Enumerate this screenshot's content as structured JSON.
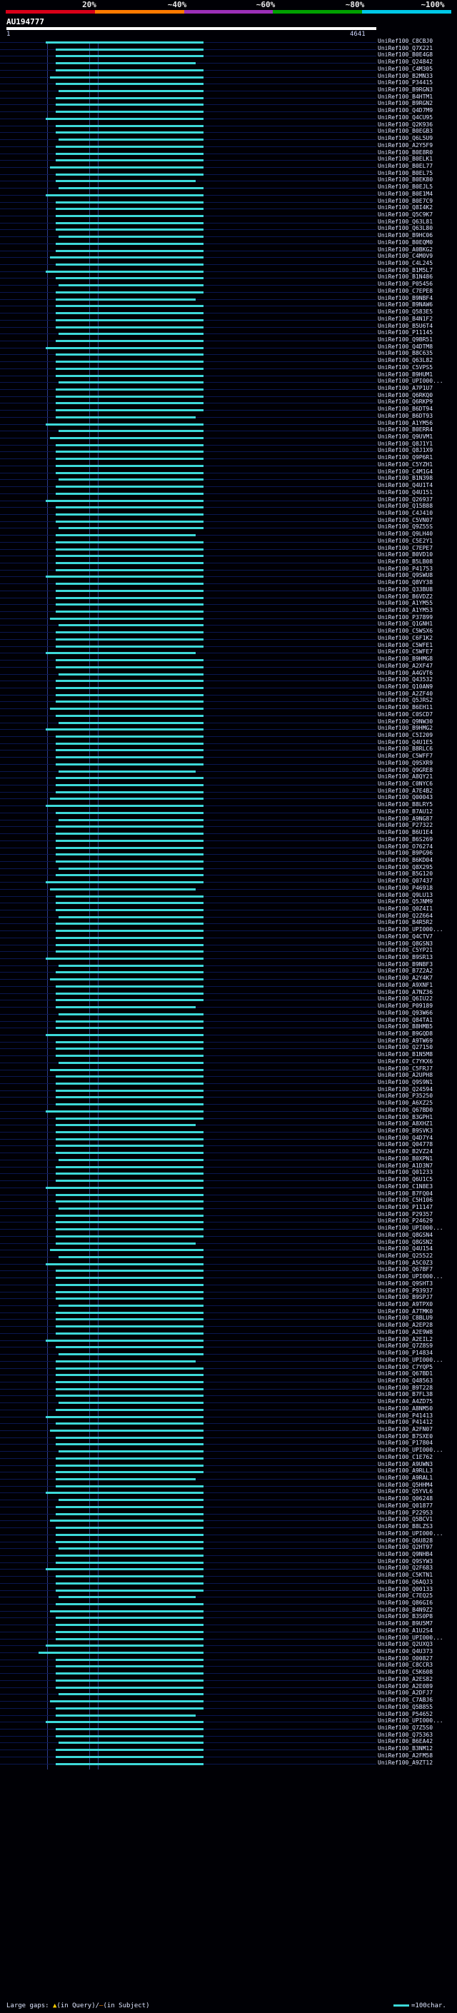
{
  "header": {
    "percent_labels": [
      "20%",
      "~40%",
      "~60%",
      "~80%",
      "~100%"
    ],
    "colors": [
      "#d80018",
      "#ff7a00",
      "#9b30b8",
      "#00a000",
      "#00c8e8"
    ],
    "hit_color": "#3dd9d9",
    "query_name": "AU194777",
    "axis_start": "1",
    "axis_end": "4641"
  },
  "legend": {
    "large_gaps_label": "Large gaps:",
    "in_query": "(in Query)",
    "separator": "/",
    "in_subject": "(in Subject)",
    "scale_label": "=100char."
  },
  "rows": [
    "UniRef100_C8CBJ0",
    "UniRef100_Q7X221",
    "UniRef100_B0E4G8",
    "UniRef100_Q24842",
    "UniRef100_C4M305",
    "UniRef100_B2MN33",
    "UniRef100_P34415",
    "UniRef100_B9RGN3",
    "UniRef100_B4HTM1",
    "UniRef100_B9RGN2",
    "UniRef100_Q4D7M9",
    "UniRef100_Q4CU95",
    "UniRef100_Q2K936",
    "UniRef100_B0EGB3",
    "UniRef100_Q6L5U9",
    "UniRef100_A2Y5F9",
    "UniRef100_B0E8R0",
    "UniRef100_B0ELK1",
    "UniRef100_B0EL77",
    "UniRef100_B0EL75",
    "UniRef100_B0EK80",
    "UniRef100_B0EJL5",
    "UniRef100_B0E1M4",
    "UniRef100_B0E7C9",
    "UniRef100_Q8I4K2",
    "UniRef100_Q5C9K7",
    "UniRef100_Q63L81",
    "UniRef100_Q63L80",
    "UniRef100_B9HC06",
    "UniRef100_B0EQM0",
    "UniRef100_A0BKG2",
    "UniRef100_C4M0V9",
    "UniRef100_C4L245",
    "UniRef100_B1M5L7",
    "UniRef100_B1N486",
    "UniRef100_P05456",
    "UniRef100_C7EPE8",
    "UniRef100_B9NBF4",
    "UniRef100_B9NAW6",
    "UniRef100_Q583E5",
    "UniRef100_B4N1F2",
    "UniRef100_B5U6T4",
    "UniRef100_P11145",
    "UniRef100_Q9BR51",
    "UniRef100_Q4DTM8",
    "UniRef100_B8C635",
    "UniRef100_Q63L82",
    "UniRef100_C5VPS5",
    "UniRef100_B9HUM1",
    "UniRef100_UPI000...",
    "UniRef100_A7P1U7",
    "UniRef100_Q6RKQ0",
    "UniRef100_Q6RKP9",
    "UniRef100_B6DT94",
    "UniRef100_B6DT93",
    "UniRef100_A1YM56",
    "UniRef100_B0ERR4",
    "UniRef100_Q9UVM1",
    "UniRef100_Q8J1Y1",
    "UniRef100_Q8J1X9",
    "UniRef100_Q9P6R1",
    "UniRef100_C5YZH1",
    "UniRef100_C4M1G4",
    "UniRef100_B1N398",
    "UniRef100_Q4U1T4",
    "UniRef100_Q4U151",
    "UniRef100_Q26937",
    "UniRef100_Q15B88",
    "UniRef100_C4J410",
    "UniRef100_C5VN07",
    "UniRef100_Q9Z55S",
    "UniRef100_Q9LH40",
    "UniRef100_C5E2Y1",
    "UniRef100_C7EPE7",
    "UniRef100_B0VD10",
    "UniRef100_B5LB08",
    "UniRef100_P41753",
    "UniRef100_Q9SWU8",
    "UniRef100_Q8VY38",
    "UniRef100_Q33BU8",
    "UniRef100_B6VDZ2",
    "UniRef100_A1YM55",
    "UniRef100_A1YM53",
    "UniRef100_P37899",
    "UniRef100_Q1GNH1",
    "UniRef100_C5WSX6",
    "UniRef100_C6F1K2",
    "UniRef100_C5WFE1",
    "UniRef100_C5WFE7",
    "UniRef100_B9HMG8",
    "UniRef100_A2XF47",
    "UniRef100_A4GVT6",
    "UniRef100_Q43532",
    "UniRef100_Q10AN9",
    "UniRef100_A2ZF40",
    "UniRef100_Q5JRS2",
    "UniRef100_B6EH11",
    "UniRef100_C0SCD7",
    "UniRef100_Q9NW30",
    "UniRef100_B9HMG2",
    "UniRef100_C5I209",
    "UniRef100_Q4U1E5",
    "UniRef100_B8RLC6",
    "UniRef100_C5WFF7",
    "UniRef100_Q9SXR9",
    "UniRef100_Q9GRE8",
    "UniRef100_A8QY21",
    "UniRef100_C0NYC6",
    "UniRef100_A7E4B2",
    "UniRef100_Q00043",
    "UniRef100_B8LRY5",
    "UniRef100_B7AU12",
    "UniRef100_A9NG87",
    "UniRef100_P27322",
    "UniRef100_B6U1E4",
    "UniRef100_B6S269",
    "UniRef100_O76274",
    "UniRef100_B9PG96",
    "UniRef100_B6KD04",
    "UniRef100_Q8X295",
    "UniRef100_B5G120",
    "UniRef100_Q07437",
    "UniRef100_P46918",
    "UniRef100_Q9LU13",
    "UniRef100_Q5JNM9",
    "UniRef100_Q0Z4I1",
    "UniRef100_Q2Z664",
    "UniRef100_B4R5R2",
    "UniRef100_UPI000...",
    "UniRef100_Q4CTV7",
    "UniRef100_Q8GSN3",
    "UniRef100_C5YP21",
    "UniRef100_B9SR13",
    "UniRef100_B9NBF3",
    "UniRef100_B7Z2A2",
    "UniRef100_A2Y4K7",
    "UniRef100_A9XNF1",
    "UniRef100_A7NZ36",
    "UniRef100_Q6IU22",
    "UniRef100_P09189",
    "UniRef100_Q93W66",
    "UniRef100_Q84TA1",
    "UniRef100_B8HMB5",
    "UniRef100_B9GQD8",
    "UniRef100_A9TW69",
    "UniRef100_Q27150",
    "UniRef100_B1N5M8",
    "UniRef100_C7YKX6",
    "UniRef100_C5FRJ7",
    "UniRef100_A2UPH8",
    "UniRef100_Q9S9N1",
    "UniRef100_Q24594",
    "UniRef100_P35250",
    "UniRef100_A6XZ25",
    "UniRef100_Q67BD0",
    "UniRef100_B3GPH1",
    "UniRef100_A8XHZ1",
    "UniRef100_B9SVK3",
    "UniRef100_Q4D7Y4",
    "UniRef100_Q04778",
    "UniRef100_B2VZ24",
    "UniRef100_B0XPN1",
    "UniRef100_A1D3N7",
    "UniRef100_Q01233",
    "UniRef100_Q6U1C5",
    "UniRef100_C1N8E3",
    "UniRef100_B7FQ04",
    "UniRef100_C5H106",
    "UniRef100_P11147",
    "UniRef100_P29357",
    "UniRef100_P24629",
    "UniRef100_UPI000...",
    "UniRef100_Q8GSN4",
    "UniRef100_Q8GSN2",
    "UniRef100_Q4U154",
    "UniRef100_Q25522",
    "UniRef100_A5C0Z3",
    "UniRef100_Q67BF7",
    "UniRef100_UPI000...",
    "UniRef100_Q9SHT3",
    "UniRef100_P93937",
    "UniRef100_B9SPJ7",
    "UniRef100_A9TPX0",
    "UniRef100_A7TMK0",
    "UniRef100_C8BLU9",
    "UniRef100_A2EP28",
    "UniRef100_A2E9W8",
    "UniRef100_A2EIL2",
    "UniRef100_Q7Z8S9",
    "UniRef100_P14834",
    "UniRef100_UPI000...",
    "UniRef100_C7YQP5",
    "UniRef100_Q67BD1",
    "UniRef100_Q48563",
    "UniRef100_B9T228",
    "UniRef100_B7FL38",
    "UniRef100_A4ZD75",
    "UniRef100_A8NM50",
    "UniRef100_P41413",
    "UniRef100_P41412",
    "UniRef100_A2FN07",
    "UniRef100_B7SXE0",
    "UniRef100_P17804",
    "UniRef100_UPI000...",
    "UniRef100_C1E762",
    "UniRef100_A9UWN3",
    "UniRef100_A9RLL3",
    "UniRef100_A9RAL1",
    "UniRef100_Q5HHM4",
    "UniRef100_Q5YVL6",
    "UniRef100_Q06248",
    "UniRef100_Q01877",
    "UniRef100_P22953",
    "UniRef100_Q5BCV1",
    "UniRef100_B8LZS3",
    "UniRef100_UPI000...",
    "UniRef100_Q6U828",
    "UniRef100_Q2HT97",
    "UniRef100_Q9NHB4",
    "UniRef100_Q9SYW3",
    "UniRef100_Q2F683",
    "UniRef100_C5KTN1",
    "UniRef100_Q6AQJ3",
    "UniRef100_Q00133",
    "UniRef100_C7EQ25",
    "UniRef100_Q86GI6",
    "UniRef100_B4N9Z2",
    "UniRef100_B3S0P8",
    "UniRef100_B9U5M7",
    "UniRef100_A1U2S4",
    "UniRef100_UPI000...",
    "UniRef100_Q2UXQ3",
    "UniRef100_Q4U373",
    "UniRef100_O00827",
    "UniRef100_C8CCR3",
    "UniRef100_C5K608",
    "UniRef100_A2ES82",
    "UniRef100_A2E089",
    "UniRef100_A2DFJ7",
    "UniRef100_C7ABJ6",
    "UniRef100_Q5B855",
    "UniRef100_P54652",
    "UniRef100_UPI000...",
    "UniRef100_Q7Z5S0",
    "UniRef100_Q75363",
    "UniRef100_B6EA42",
    "UniRef100_B3NM12",
    "UniRef100_A2FM58",
    "UniRef100_A9ZT12"
  ]
}
